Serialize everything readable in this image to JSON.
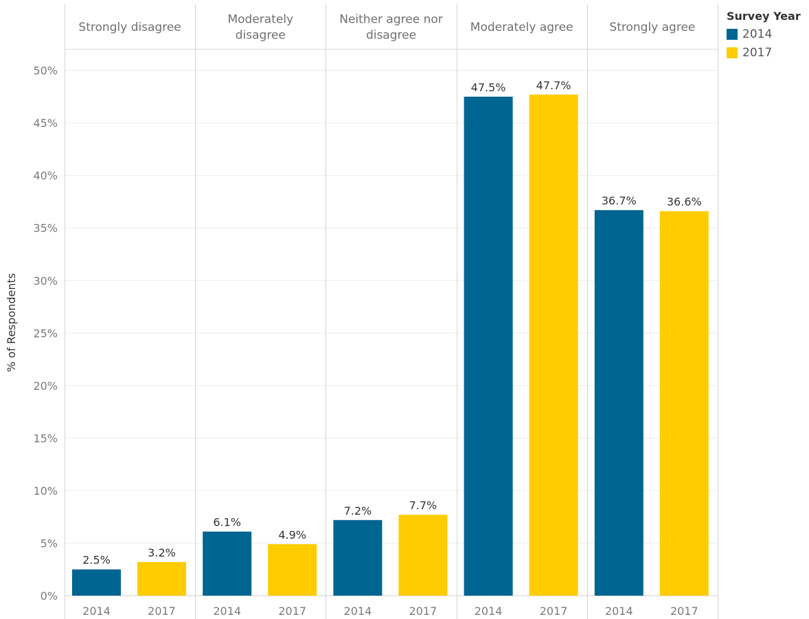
{
  "chart_data": {
    "type": "bar",
    "ylabel": "% of Respondents",
    "ylim": [
      0,
      52
    ],
    "yticks": [
      "0%",
      "5%",
      "10%",
      "15%",
      "20%",
      "25%",
      "30%",
      "35%",
      "40%",
      "45%",
      "50%"
    ],
    "grid": true,
    "legend": {
      "title": "Survey Year",
      "placement": "top-right",
      "items": [
        {
          "label": "2014",
          "color": "#006591"
        },
        {
          "label": "2017",
          "color": "#ffcc00"
        }
      ]
    },
    "panels": [
      {
        "label": "Strongly disagree",
        "categories": [
          "2014",
          "2017"
        ],
        "values": [
          2.5,
          3.2
        ],
        "value_labels": [
          "2.5%",
          "3.2%"
        ]
      },
      {
        "label": "Moderately disagree",
        "categories": [
          "2014",
          "2017"
        ],
        "values": [
          6.1,
          4.9
        ],
        "value_labels": [
          "6.1%",
          "4.9%"
        ]
      },
      {
        "label": "Neither agree nor disagree",
        "categories": [
          "2014",
          "2017"
        ],
        "values": [
          7.2,
          7.7
        ],
        "value_labels": [
          "7.2%",
          "7.7%"
        ]
      },
      {
        "label": "Moderately agree",
        "categories": [
          "2014",
          "2017"
        ],
        "values": [
          47.5,
          47.7
        ],
        "value_labels": [
          "47.5%",
          "47.7%"
        ]
      },
      {
        "label": "Strongly agree",
        "categories": [
          "2014",
          "2017"
        ],
        "values": [
          36.7,
          36.6
        ],
        "value_labels": [
          "36.7%",
          "36.6%"
        ]
      }
    ],
    "colors": {
      "2014": "#006591",
      "2017": "#ffcc00"
    }
  }
}
